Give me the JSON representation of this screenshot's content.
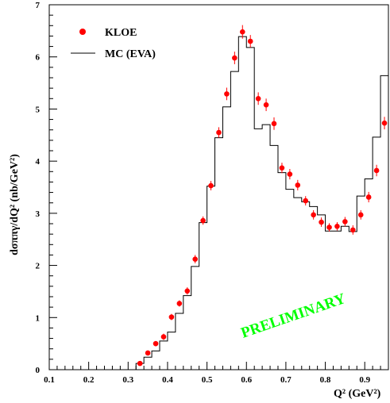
{
  "chart_data": {
    "type": "scatter",
    "title": "",
    "xlabel": "Q² (GeV²)",
    "ylabel": "dσππγ/dQ² (nb/GeV²)",
    "xlim": [
      0.1,
      0.96
    ],
    "ylim": [
      0,
      7
    ],
    "x_ticks": [
      "0.1",
      "0.2",
      "0.3",
      "0.4",
      "0.5",
      "0.6",
      "0.7",
      "0.8",
      "0.9"
    ],
    "y_ticks": [
      "0",
      "1",
      "2",
      "3",
      "4",
      "5",
      "6",
      "7"
    ],
    "legend_position": "top-left",
    "series": [
      {
        "name": "KLOE",
        "kind": "points",
        "color": "#ff0000",
        "x": [
          0.33,
          0.35,
          0.37,
          0.39,
          0.41,
          0.43,
          0.45,
          0.47,
          0.49,
          0.51,
          0.53,
          0.55,
          0.57,
          0.59,
          0.61,
          0.63,
          0.65,
          0.67,
          0.69,
          0.71,
          0.73,
          0.75,
          0.77,
          0.79,
          0.81,
          0.83,
          0.85,
          0.87,
          0.89,
          0.91,
          0.93,
          0.95
        ],
        "y": [
          0.12,
          0.32,
          0.5,
          0.63,
          1.01,
          1.27,
          1.51,
          2.12,
          2.86,
          3.53,
          4.55,
          5.29,
          5.98,
          6.48,
          6.3,
          5.2,
          5.08,
          4.72,
          3.87,
          3.75,
          3.54,
          3.24,
          2.97,
          2.83,
          2.73,
          2.75,
          2.84,
          2.68,
          2.97,
          3.31,
          3.82,
          4.73
        ],
        "yerr": [
          0.03,
          0.04,
          0.05,
          0.06,
          0.06,
          0.06,
          0.07,
          0.08,
          0.08,
          0.09,
          0.1,
          0.12,
          0.12,
          0.13,
          0.12,
          0.12,
          0.12,
          0.12,
          0.1,
          0.1,
          0.1,
          0.09,
          0.09,
          0.09,
          0.08,
          0.08,
          0.09,
          0.09,
          0.09,
          0.1,
          0.11,
          0.12
        ]
      },
      {
        "name": "MC (EVA)",
        "kind": "step",
        "color": "#000000",
        "bin_edges": [
          0.3,
          0.32,
          0.34,
          0.36,
          0.38,
          0.4,
          0.42,
          0.44,
          0.46,
          0.48,
          0.5,
          0.52,
          0.54,
          0.56,
          0.58,
          0.6,
          0.62,
          0.64,
          0.66,
          0.68,
          0.7,
          0.72,
          0.74,
          0.76,
          0.78,
          0.8,
          0.82,
          0.84,
          0.86,
          0.88,
          0.9,
          0.92,
          0.94,
          0.96
        ],
        "values": [
          0.0,
          0.12,
          0.24,
          0.36,
          0.55,
          0.72,
          1.08,
          1.42,
          1.98,
          2.82,
          3.52,
          4.45,
          5.04,
          5.72,
          6.39,
          6.18,
          4.62,
          4.7,
          4.3,
          3.78,
          3.46,
          3.3,
          3.22,
          3.13,
          2.97,
          2.66,
          2.66,
          2.75,
          2.65,
          3.33,
          3.66,
          4.46,
          5.64
        ]
      }
    ],
    "annotations": [
      {
        "text": "PRELIMINARY",
        "color": "#00ff00"
      }
    ]
  }
}
